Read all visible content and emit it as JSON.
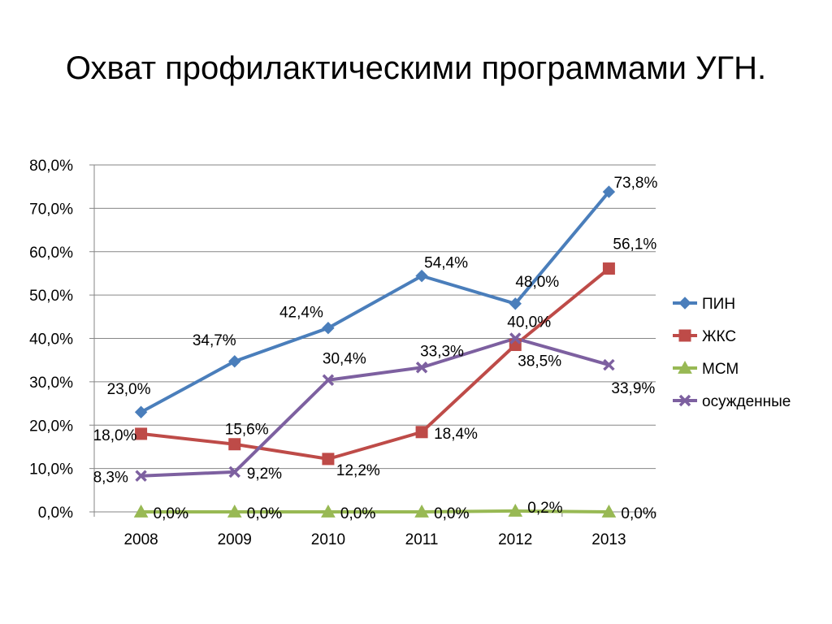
{
  "slide": {
    "title": "Охват профилактическими программами УГН."
  },
  "chart_data": {
    "type": "line",
    "title": "Охват профилактическими программами УГН.",
    "xlabel": "",
    "ylabel": "",
    "categories": [
      "2008",
      "2009",
      "2010",
      "2011",
      "2012",
      "2013"
    ],
    "ylim": [
      0,
      80
    ],
    "ytick_step": 10,
    "ytick_labels": [
      "0,0%",
      "10,0%",
      "20,0%",
      "30,0%",
      "40,0%",
      "50,0%",
      "60,0%",
      "70,0%",
      "80,0%"
    ],
    "grid": true,
    "legend_position": "right",
    "series": [
      {
        "name": "ПИН",
        "color": "#4a7ebb",
        "marker": "diamond",
        "values": [
          23.0,
          34.7,
          42.4,
          54.4,
          48.0,
          73.8
        ],
        "labels": [
          "23,0%",
          "34,7%",
          "42,4%",
          "54,4%",
          "48,0%",
          "73,8%"
        ]
      },
      {
        "name": "ЖКС",
        "color": "#be4b48",
        "marker": "square",
        "values": [
          18.0,
          15.6,
          12.2,
          18.4,
          38.5,
          56.1
        ],
        "labels": [
          "18,0%",
          "15,6%",
          "12,2%",
          "18,4%",
          "38,5%",
          "56,1%"
        ]
      },
      {
        "name": "МСМ",
        "color": "#98b954",
        "marker": "triangle",
        "values": [
          0.0,
          0.0,
          0.0,
          0.0,
          0.2,
          0.0
        ],
        "labels": [
          "0,0%",
          "0,0%",
          "0,0%",
          "0,0%",
          "0,2%",
          "0,0%"
        ]
      },
      {
        "name": "осужденные",
        "color": "#7d60a0",
        "marker": "x",
        "values": [
          8.3,
          9.2,
          30.4,
          33.3,
          40.0,
          33.9
        ],
        "labels": [
          "8,3%",
          "9,2%",
          "30,4%",
          "33,3%",
          "40,0%",
          "33,9%"
        ]
      }
    ]
  }
}
